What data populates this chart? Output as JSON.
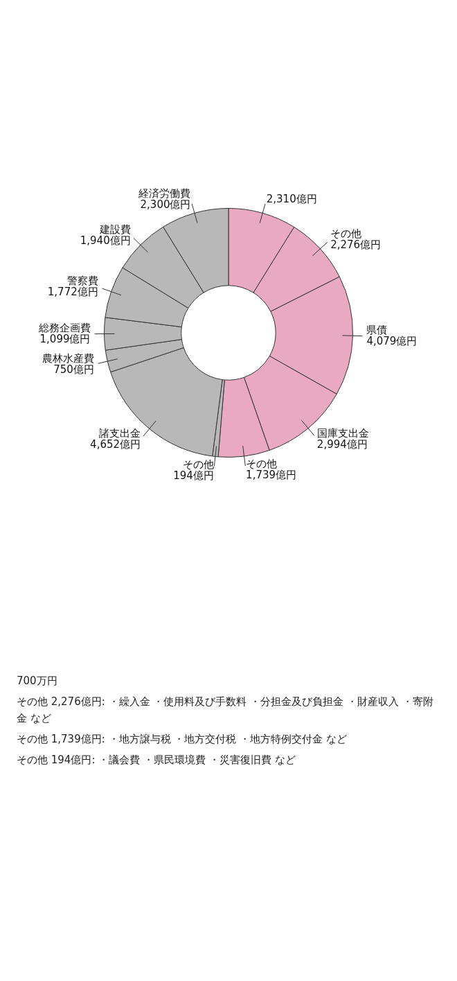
{
  "chart_data": {
    "type": "donut",
    "categories": [
      null,
      "その他",
      "県債",
      "国庫支出金",
      "その他",
      "その他",
      "諸支出金",
      "農林水産費",
      "総務企画費",
      "警察費",
      "建設費",
      "経済労働費"
    ],
    "values": [
      2310,
      2276,
      4079,
      2994,
      1739,
      194,
      4652,
      750,
      1099,
      1772,
      1940,
      2300
    ],
    "value_labels": [
      "2,310億円",
      "2,276億円",
      "4,079億円",
      "2,994億円",
      "1,739億円",
      "194億円",
      "4,652億円",
      "750億円",
      "1,099億円",
      "1,772億円",
      "1,940億円",
      "2,300億円"
    ],
    "colors": [
      "#e9a9c1",
      "#e9a9c1",
      "#e9a9c1",
      "#e9a9c1",
      "#e9a9c1",
      "#b8b8b8",
      "#b8b8b8",
      "#b8b8b8",
      "#b8b8b8",
      "#b8b8b8",
      "#b8b8b8",
      "#b8b8b8"
    ],
    "legend": false,
    "annotations": [
      "700万円",
      "その他 2,276億円: ・繰入金 ・使用料及び手数料 ・分担金及び負担金 ・財産収入 ・寄附金 など",
      "その他 1,739億円: ・地方譲与税 ・地方交付税 ・地方特例交付金 など",
      "その他 194億円: ・議会費 ・県民環境費 ・災害復旧費 など"
    ]
  }
}
